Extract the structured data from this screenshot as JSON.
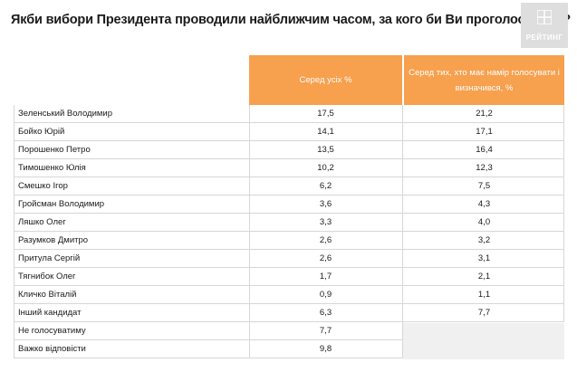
{
  "title": "Якби вибори Президента проводили найближчим часом, за кого би Ви проголосували?",
  "logo": {
    "text": "РЕЙТИНГ",
    "icon": "rating-logo-icon"
  },
  "colors": {
    "header_accent": "#f7a04e",
    "logo_bg": "#dedede"
  },
  "table": {
    "headers": {
      "col1": "Серед усіх %",
      "col2": "Серед тих, хто має намір голосувати і визначився, %"
    },
    "rows": [
      {
        "name": "Зеленський Володимир",
        "all": "17,5",
        "decided": "21,2"
      },
      {
        "name": "Бойко Юрій",
        "all": "14,1",
        "decided": "17,1"
      },
      {
        "name": "Порошенко Петро",
        "all": "13,5",
        "decided": "16,4"
      },
      {
        "name": "Тимошенко Юлія",
        "all": "10,2",
        "decided": "12,3"
      },
      {
        "name": "Смешко Ігор",
        "all": "6,2",
        "decided": "7,5"
      },
      {
        "name": "Гройсман Володимир",
        "all": "3,6",
        "decided": "4,3"
      },
      {
        "name": "Ляшко Олег",
        "all": "3,3",
        "decided": "4,0"
      },
      {
        "name": "Разумков Дмитро",
        "all": "2,6",
        "decided": "3,2"
      },
      {
        "name": "Притула Сергій",
        "all": "2,6",
        "decided": "3,1"
      },
      {
        "name": "Тягнибок Олег",
        "all": "1,7",
        "decided": "2,1"
      },
      {
        "name": "Кличко Віталій",
        "all": "0,9",
        "decided": "1,1"
      },
      {
        "name": "Інший кандидат",
        "all": "6,3",
        "decided": "7,7"
      },
      {
        "name": "Не голосуватиму",
        "all": "7,7",
        "decided": ""
      },
      {
        "name": "Важко відповісти",
        "all": "9,8",
        "decided": ""
      }
    ]
  }
}
